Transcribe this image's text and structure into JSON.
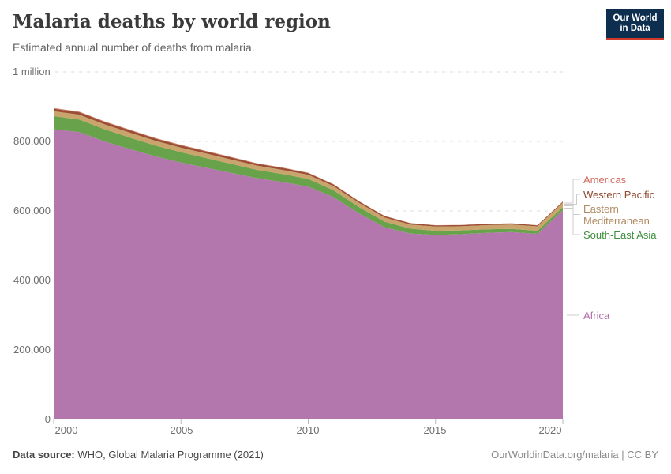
{
  "header": {
    "title": "Malaria deaths by world region",
    "subtitle": "Estimated annual number of deaths from malaria."
  },
  "logo": {
    "line1": "Our World",
    "line2": "in Data",
    "bg_color": "#0d2e4f",
    "accent_color": "#cf3a2d"
  },
  "yaxis": {
    "labels": [
      "1 million",
      "800,000",
      "600,000",
      "400,000",
      "200,000",
      "0"
    ]
  },
  "xaxis": {
    "labels": [
      "2000",
      "2005",
      "2010",
      "2015",
      "2020"
    ]
  },
  "legend": {
    "items": [
      {
        "label": "Americas",
        "color": "#d2695c"
      },
      {
        "label": "Western Pacific",
        "color": "#8d4a2f"
      },
      {
        "label": "Eastern Mediterranean",
        "color": "#b08b62"
      },
      {
        "label": "South-East Asia",
        "color": "#3d8e3d"
      },
      {
        "label": "Africa",
        "color": "#b06ba8"
      }
    ]
  },
  "footer": {
    "source_label": "Data source:",
    "source_text": " WHO, Global Malaria Programme (2021)",
    "credit": "OurWorldinData.org/malaria | CC BY"
  },
  "chart_data": {
    "type": "area",
    "stacked": true,
    "title": "Malaria deaths by world region",
    "xlabel": "",
    "ylabel": "",
    "ylim": [
      0,
      1000000
    ],
    "grid": true,
    "gridline_values": [
      200000,
      400000,
      600000,
      800000,
      1000000
    ],
    "legend_position": "right",
    "x": [
      2000,
      2001,
      2002,
      2003,
      2004,
      2005,
      2006,
      2007,
      2008,
      2009,
      2010,
      2011,
      2012,
      2013,
      2014,
      2015,
      2016,
      2017,
      2018,
      2019,
      2020
    ],
    "series": [
      {
        "name": "Africa",
        "color": "#b377ae",
        "values": [
          835000,
          827000,
          800000,
          778000,
          757000,
          739000,
          724000,
          709000,
          694000,
          683000,
          670000,
          639000,
          593000,
          553000,
          535000,
          531000,
          533000,
          537000,
          539000,
          534000,
          602000
        ]
      },
      {
        "name": "South-East Asia",
        "color": "#68a24b",
        "values": [
          38000,
          36000,
          35000,
          33000,
          31000,
          30000,
          28000,
          26000,
          24000,
          23000,
          22000,
          20000,
          18000,
          16000,
          14000,
          12000,
          11000,
          10000,
          9500,
          9000,
          9000
        ]
      },
      {
        "name": "Eastern Mediterranean",
        "color": "#c9a46d",
        "values": [
          14000,
          14000,
          14000,
          14000,
          13500,
          13000,
          13000,
          12500,
          12000,
          12000,
          12000,
          12000,
          12000,
          12000,
          12000,
          12000,
          12000,
          12200,
          12400,
          12600,
          13000
        ]
      },
      {
        "name": "Western Pacific",
        "color": "#9c4e35",
        "values": [
          7000,
          7000,
          7000,
          6800,
          6600,
          6400,
          6200,
          6000,
          5800,
          5600,
          5000,
          4600,
          4200,
          3900,
          3700,
          3500,
          3300,
          3200,
          3100,
          3000,
          2900
        ]
      },
      {
        "name": "Americas",
        "color": "#cf7860",
        "values": [
          2000,
          1900,
          1800,
          1700,
          1600,
          1500,
          1400,
          1300,
          1200,
          1100,
          1000,
          900,
          800,
          700,
          650,
          600,
          550,
          500,
          470,
          440,
          400
        ]
      }
    ]
  }
}
